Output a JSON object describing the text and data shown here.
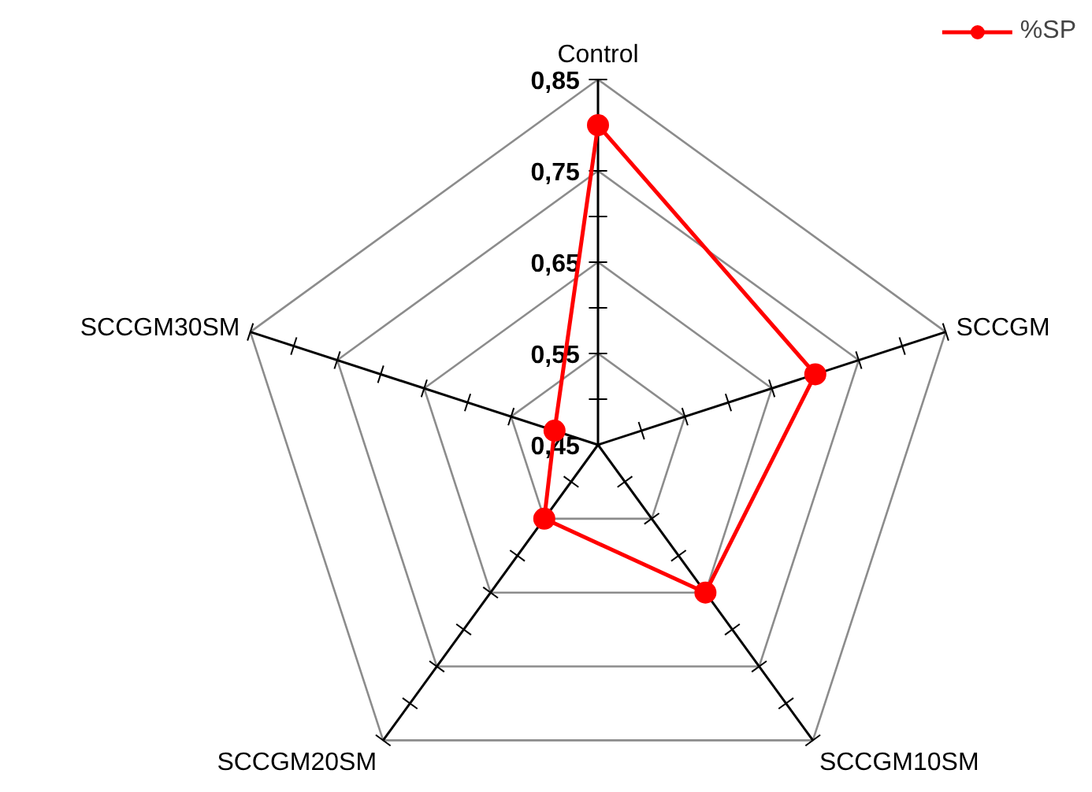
{
  "chart_data": {
    "type": "radar",
    "categories": [
      "Control",
      "SCCGM",
      "SCCGM10SM",
      "SCCGM20SM",
      "SCCGM30SM"
    ],
    "series": [
      {
        "name": "%SP",
        "color": "#ff0000",
        "values": [
          0.8,
          0.7,
          0.65,
          0.55,
          0.5
        ]
      }
    ],
    "ylim": [
      0.45,
      0.85
    ],
    "yticks": [
      {
        "value": 0.45,
        "label": "0,45"
      },
      {
        "value": 0.55,
        "label": "0,55"
      },
      {
        "value": 0.65,
        "label": "0,65"
      },
      {
        "value": 0.75,
        "label": "0,75"
      },
      {
        "value": 0.85,
        "label": "0,85"
      }
    ],
    "marker": "circle",
    "line_style": "solid",
    "legend": "top right",
    "grid": true
  }
}
